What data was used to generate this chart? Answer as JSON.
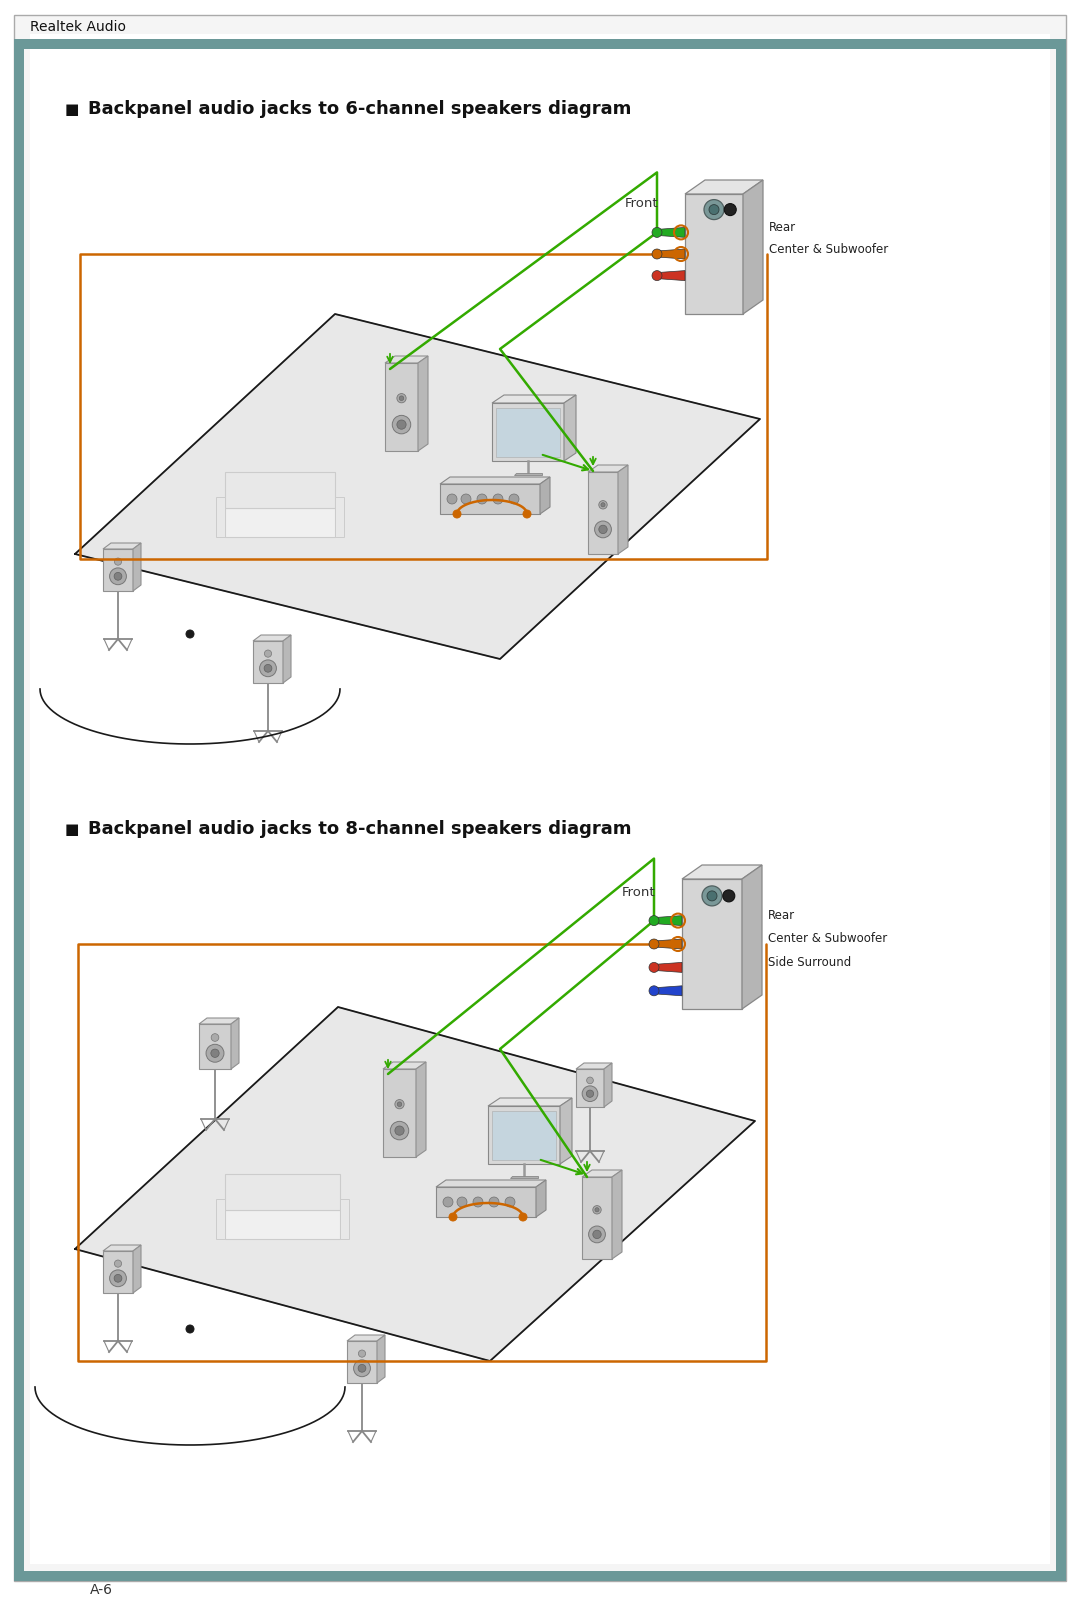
{
  "bg_color": "#ffffff",
  "header_text": "Realtek Audio",
  "header_bar_color": "#6b9898",
  "footer_text": "A-6",
  "title1": "Backpanel audio jacks to 6-channel speakers diagram",
  "title2": "Backpanel audio jacks to 8-channel speakers diagram",
  "line_green": "#33aa00",
  "line_orange": "#cc6600",
  "line_black": "#1a1a1a",
  "room_fill": "#e8e8e8",
  "room_edge": "#aaaaaa",
  "label_front": "Front",
  "label_rear": "Rear",
  "label_center_sub": "Center & Subwoofer",
  "label_side_surround": "Side Surround",
  "panel_fc": "#d8d8d8",
  "panel_top": "#e8e8e8",
  "panel_right": "#b8b8b8",
  "speaker_fc": "#c8c8c8",
  "speaker_dark": "#a0a0a0"
}
